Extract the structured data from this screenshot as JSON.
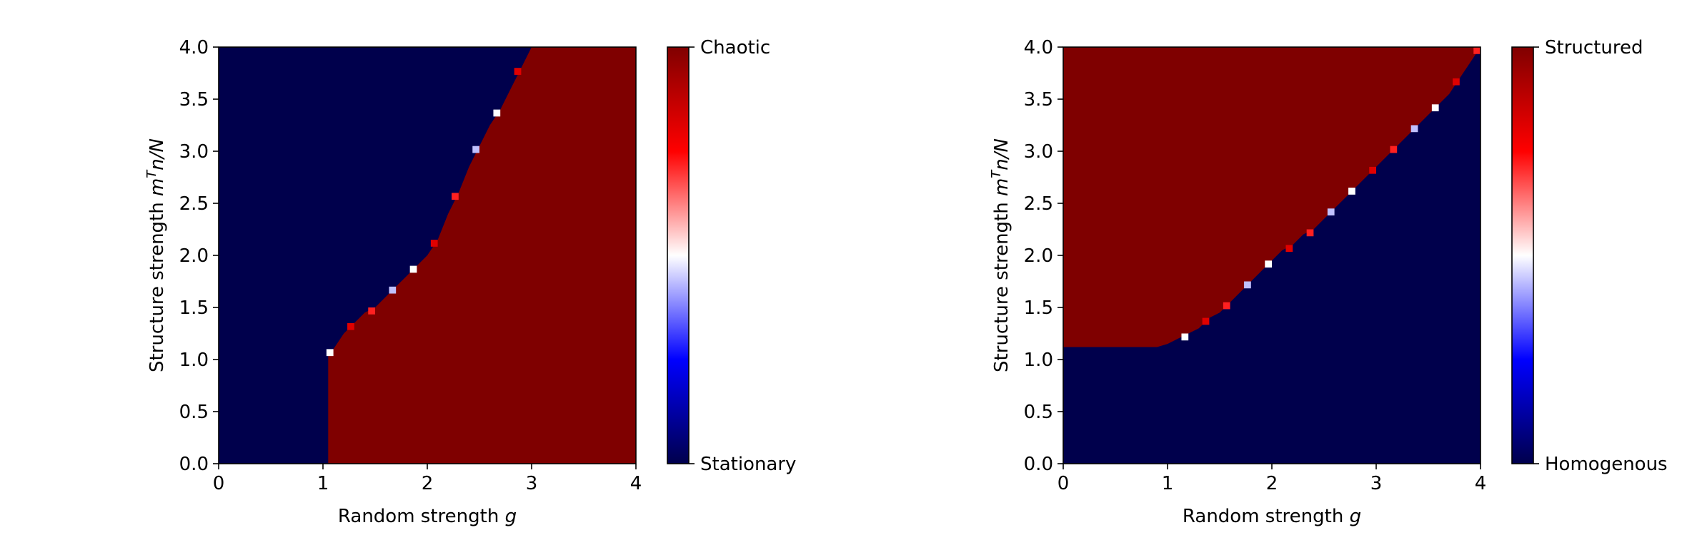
{
  "chart_data": [
    {
      "type": "heatmap",
      "title": "",
      "xlabel": "Random strength ",
      "xlabel_var": "g",
      "ylabel": "Structure strength ",
      "ylabel_var": "m",
      "ylabel_sup": "T",
      "ylabel_rest": "n/N",
      "xlim": [
        0,
        4
      ],
      "ylim": [
        0,
        4
      ],
      "xticks": [
        0,
        1,
        2,
        3,
        4
      ],
      "xtick_labels": [
        "0",
        "1",
        "2",
        "3",
        "4"
      ],
      "yticks": [
        0,
        0.5,
        1,
        1.5,
        2,
        2.5,
        3,
        3.5,
        4
      ],
      "ytick_labels": [
        "0.0",
        "0.5",
        "1.0",
        "1.5",
        "2.0",
        "2.5",
        "3.0",
        "3.5",
        "4.0"
      ],
      "grid": false,
      "colormap": "seismic",
      "colorbar": {
        "min_label": "Stationary",
        "max_label": "Chaotic"
      },
      "region_low_value": 0,
      "region_high_value": 1,
      "boundary": [
        [
          0.0,
          1.05
        ],
        [
          0.5,
          1.05
        ],
        [
          1.0,
          1.05
        ],
        [
          1.05,
          1.05
        ],
        [
          1.1,
          1.1
        ],
        [
          1.2,
          1.25
        ],
        [
          1.3,
          1.35
        ],
        [
          1.4,
          1.45
        ],
        [
          1.5,
          1.5
        ],
        [
          1.6,
          1.6
        ],
        [
          1.7,
          1.7
        ],
        [
          1.8,
          1.8
        ],
        [
          1.9,
          1.9
        ],
        [
          2.0,
          2.0
        ],
        [
          2.1,
          2.15
        ],
        [
          2.2,
          2.4
        ],
        [
          2.3,
          2.6
        ],
        [
          2.4,
          2.85
        ],
        [
          2.5,
          3.05
        ],
        [
          2.6,
          3.25
        ],
        [
          2.7,
          3.4
        ],
        [
          2.8,
          3.6
        ],
        [
          2.9,
          3.8
        ],
        [
          3.0,
          4.0
        ]
      ],
      "boundary_lower": [
        [
          1.05,
          0.0
        ],
        [
          1.05,
          1.05
        ]
      ]
    },
    {
      "type": "heatmap",
      "title": "",
      "xlabel": "Random strength ",
      "xlabel_var": "g",
      "ylabel": "Structure strength ",
      "ylabel_var": "m",
      "ylabel_sup": "T",
      "ylabel_rest": "n/N",
      "xlim": [
        0,
        4
      ],
      "ylim": [
        0,
        4
      ],
      "xticks": [
        0,
        1,
        2,
        3,
        4
      ],
      "xtick_labels": [
        "0",
        "1",
        "2",
        "3",
        "4"
      ],
      "yticks": [
        0,
        0.5,
        1,
        1.5,
        2,
        2.5,
        3,
        3.5,
        4
      ],
      "ytick_labels": [
        "0.0",
        "0.5",
        "1.0",
        "1.5",
        "2.0",
        "2.5",
        "3.0",
        "3.5",
        "4.0"
      ],
      "grid": false,
      "colormap": "seismic",
      "colorbar": {
        "min_label": "Homogenous",
        "max_label": "Structured"
      },
      "region_low_value": 0,
      "region_high_value": 1,
      "boundary": [
        [
          0.0,
          1.12
        ],
        [
          0.9,
          1.12
        ],
        [
          1.0,
          1.15
        ],
        [
          1.1,
          1.2
        ],
        [
          1.2,
          1.25
        ],
        [
          1.3,
          1.3
        ],
        [
          1.4,
          1.4
        ],
        [
          1.5,
          1.45
        ],
        [
          1.6,
          1.55
        ],
        [
          1.7,
          1.65
        ],
        [
          1.8,
          1.75
        ],
        [
          1.9,
          1.85
        ],
        [
          2.0,
          1.95
        ],
        [
          2.1,
          2.05
        ],
        [
          2.2,
          2.1
        ],
        [
          2.3,
          2.2
        ],
        [
          2.4,
          2.25
        ],
        [
          2.5,
          2.35
        ],
        [
          2.6,
          2.45
        ],
        [
          2.7,
          2.55
        ],
        [
          2.8,
          2.65
        ],
        [
          2.9,
          2.75
        ],
        [
          3.0,
          2.85
        ],
        [
          3.1,
          2.95
        ],
        [
          3.2,
          3.05
        ],
        [
          3.3,
          3.15
        ],
        [
          3.4,
          3.25
        ],
        [
          3.5,
          3.35
        ],
        [
          3.6,
          3.45
        ],
        [
          3.7,
          3.55
        ],
        [
          3.8,
          3.7
        ],
        [
          3.9,
          3.85
        ],
        [
          4.0,
          4.0
        ]
      ]
    }
  ]
}
